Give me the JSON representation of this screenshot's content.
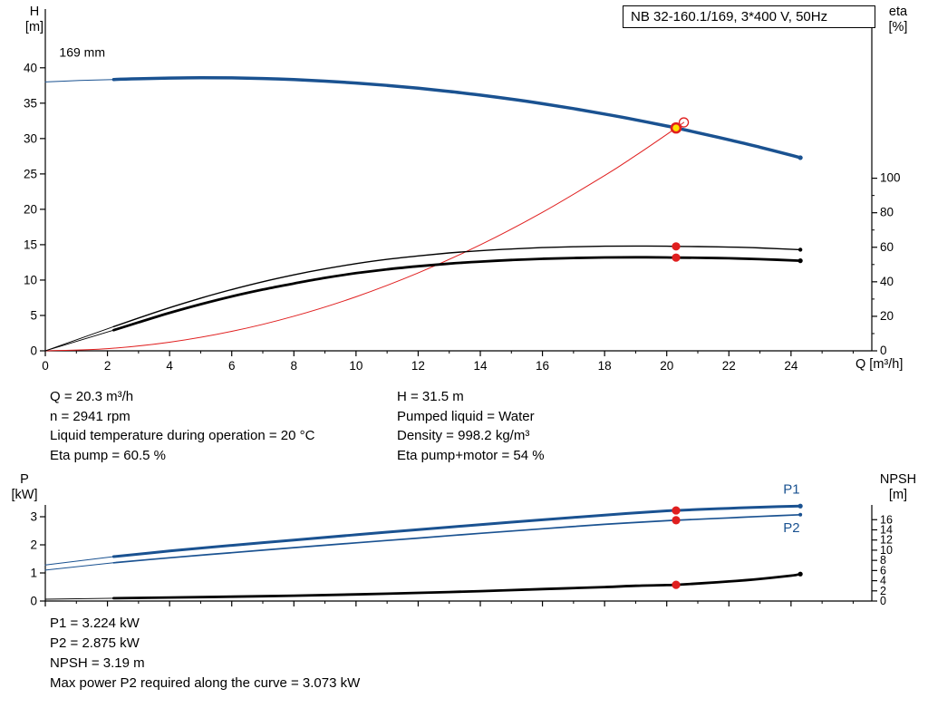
{
  "page": {
    "background": "#ffffff"
  },
  "colors": {
    "curve_blue": "#1a5291",
    "red": "#e01f1f",
    "yellow": "#ffe000",
    "black": "#000000"
  },
  "info": {
    "left": [
      "Q = 20.3 m³/h",
      "n = 2941 rpm",
      "Liquid temperature during operation = 20 °C",
      "Eta pump = 60.5 %"
    ],
    "right": [
      "H = 31.5 m",
      "Pumped liquid = Water",
      "Density = 998.2 kg/m³",
      "Eta pump+motor = 54 %"
    ]
  },
  "footer": [
    "P1 = 3.224 kW",
    "P2 = 2.875 kW",
    "NPSH = 3.19 m",
    "Max power P2 required along the curve = 3.073 kW"
  ],
  "chart_data": [
    {
      "name": "head-capacity-chart",
      "type": "line",
      "title": "NB 32-160.1/169, 3*400 V, 50Hz",
      "axes": {
        "x": {
          "label": "Q [m³/h]",
          "range": [
            0,
            26.6
          ],
          "ticks": [
            0,
            2,
            4,
            6,
            8,
            10,
            12,
            14,
            16,
            18,
            20,
            22,
            24
          ],
          "minor_step": 1,
          "show_labels": true
        },
        "y_left": {
          "label": "H [m]",
          "label_lines": [
            "H",
            "[m]"
          ],
          "range": [
            0,
            48.3
          ],
          "ticks": [
            0,
            5,
            10,
            15,
            20,
            25,
            30,
            35,
            40
          ]
        },
        "y_right": {
          "label": "eta [%]",
          "label_lines": [
            "eta",
            "[%]"
          ],
          "range": [
            0,
            198
          ],
          "ticks": [
            0,
            20,
            40,
            60,
            80,
            100
          ],
          "minor_step": 10
        }
      },
      "series": [
        {
          "name": "pump-curve-low-flow-extension",
          "axis": "left",
          "color": "#1a5291",
          "width": 1,
          "points": [
            [
              0,
              38.0
            ],
            [
              1.1,
              38.2
            ],
            [
              2.2,
              38.35
            ]
          ]
        },
        {
          "name": "pump-curve-169mm",
          "axis": "left",
          "color": "#1a5291",
          "width": 3.5,
          "points": [
            [
              2.2,
              38.35
            ],
            [
              3,
              38.45
            ],
            [
              4,
              38.55
            ],
            [
              5,
              38.6
            ],
            [
              6,
              38.57
            ],
            [
              7,
              38.48
            ],
            [
              8,
              38.33
            ],
            [
              9,
              38.11
            ],
            [
              10,
              37.84
            ],
            [
              11,
              37.51
            ],
            [
              12,
              37.11
            ],
            [
              13,
              36.66
            ],
            [
              14,
              36.14
            ],
            [
              15,
              35.57
            ],
            [
              16,
              34.93
            ],
            [
              17,
              34.23
            ],
            [
              18,
              33.47
            ],
            [
              19,
              32.65
            ],
            [
              20,
              31.77
            ],
            [
              20.3,
              31.5
            ],
            [
              21,
              30.83
            ],
            [
              22,
              29.83
            ],
            [
              23,
              28.77
            ],
            [
              24,
              27.65
            ],
            [
              24.3,
              27.3
            ]
          ]
        },
        {
          "name": "system-curve",
          "axis": "left",
          "color": "#e01f1f",
          "width": 1,
          "points": [
            [
              0,
              0
            ],
            [
              2,
              0.31
            ],
            [
              4,
              1.22
            ],
            [
              6,
              2.75
            ],
            [
              8,
              4.89
            ],
            [
              10,
              7.64
            ],
            [
              12,
              11.01
            ],
            [
              14,
              14.98
            ],
            [
              16,
              19.57
            ],
            [
              18,
              24.77
            ],
            [
              19,
              27.6
            ],
            [
              20,
              30.58
            ],
            [
              20.3,
              31.5
            ],
            [
              20.55,
              32.28
            ]
          ]
        },
        {
          "name": "eta-pump-extension",
          "axis": "right",
          "color": "#000000",
          "width": 0.9,
          "points": [
            [
              0,
              0
            ],
            [
              2.2,
              14
            ]
          ]
        },
        {
          "name": "eta-pump-curve",
          "axis": "right",
          "color": "#000000",
          "width": 1.4,
          "points": [
            [
              2.2,
              14
            ],
            [
              3,
              19
            ],
            [
              4,
              25
            ],
            [
              5,
              30.5
            ],
            [
              6,
              35.5
            ],
            [
              7,
              40
            ],
            [
              8,
              44
            ],
            [
              9,
              47.5
            ],
            [
              10,
              50.5
            ],
            [
              11,
              53
            ],
            [
              12,
              55
            ],
            [
              13,
              56.7
            ],
            [
              14,
              58
            ],
            [
              15,
              59
            ],
            [
              16,
              59.8
            ],
            [
              17,
              60.3
            ],
            [
              18,
              60.6
            ],
            [
              19,
              60.7
            ],
            [
              20,
              60.6
            ],
            [
              20.3,
              60.5
            ],
            [
              21,
              60.4
            ],
            [
              22,
              60.1
            ],
            [
              23,
              59.6
            ],
            [
              24.3,
              58.6
            ]
          ]
        },
        {
          "name": "eta-pump-motor-extension",
          "axis": "right",
          "color": "#000000",
          "width": 0.9,
          "points": [
            [
              0,
              0
            ],
            [
              2.2,
              12
            ]
          ]
        },
        {
          "name": "eta-pump-motor-curve",
          "axis": "right",
          "color": "#000000",
          "width": 2.8,
          "points": [
            [
              2.2,
              12
            ],
            [
              3,
              16.5
            ],
            [
              4,
              22
            ],
            [
              5,
              27
            ],
            [
              6,
              31.5
            ],
            [
              7,
              35.5
            ],
            [
              8,
              39
            ],
            [
              9,
              42.3
            ],
            [
              10,
              45
            ],
            [
              11,
              47.2
            ],
            [
              12,
              49
            ],
            [
              13,
              50.5
            ],
            [
              14,
              51.7
            ],
            [
              15,
              52.6
            ],
            [
              16,
              53.3
            ],
            [
              17,
              53.8
            ],
            [
              18,
              54.1
            ],
            [
              19,
              54.2
            ],
            [
              20,
              54.1
            ],
            [
              20.3,
              54.0
            ],
            [
              21,
              53.9
            ],
            [
              22,
              53.6
            ],
            [
              23,
              53.1
            ],
            [
              24.3,
              52.2
            ]
          ]
        }
      ],
      "markers": [
        {
          "name": "pump-curve-end-dot",
          "axis": "left",
          "x": 24.3,
          "y": 27.3,
          "r": 2.6,
          "fill": "#1a5291",
          "stroke": "none",
          "stroke_width": 0
        },
        {
          "name": "eta-pump-end-dot",
          "axis": "right",
          "x": 24.3,
          "y": 58.6,
          "r": 2.2,
          "fill": "#000000",
          "stroke": "none",
          "stroke_width": 0
        },
        {
          "name": "eta-pump-motor-end-dot",
          "axis": "right",
          "x": 24.3,
          "y": 52.2,
          "r": 2.6,
          "fill": "#000000",
          "stroke": "none",
          "stroke_width": 0
        },
        {
          "name": "requested-duty-point",
          "axis": "left",
          "x": 20.55,
          "y": 32.28,
          "r": 5,
          "fill": "none",
          "stroke": "#e01f1f",
          "stroke_width": 1.3
        },
        {
          "name": "duty-point",
          "axis": "left",
          "x": 20.3,
          "y": 31.5,
          "r": 5,
          "fill": "#ffe000",
          "stroke": "#e01f1f",
          "stroke_width": 2.6
        },
        {
          "name": "eta-pump-duty-dot",
          "axis": "right",
          "x": 20.3,
          "y": 60.5,
          "r": 4.6,
          "fill": "#e01f1f",
          "stroke": "none",
          "stroke_width": 0
        },
        {
          "name": "eta-pump-motor-duty-dot",
          "axis": "right",
          "x": 20.3,
          "y": 54,
          "r": 4.6,
          "fill": "#e01f1f",
          "stroke": "none",
          "stroke_width": 0
        }
      ],
      "annotations": [
        {
          "name": "impeller-size-label",
          "text": "169 mm",
          "x": 0.45,
          "y": 41.6,
          "color": "#000000",
          "size": 14
        }
      ]
    },
    {
      "name": "power-npsh-chart",
      "type": "line",
      "title": "",
      "axes": {
        "x": {
          "label": "",
          "range": [
            0,
            26.6
          ],
          "ticks": [
            0,
            2,
            4,
            6,
            8,
            10,
            12,
            14,
            16,
            18,
            20,
            22,
            24
          ],
          "minor_step": 1,
          "show_labels": false
        },
        "y_left": {
          "label": "P [kW]",
          "label_lines": [
            "P",
            "[kW]"
          ],
          "range": [
            0,
            3.42
          ],
          "ticks": [
            0,
            1,
            2,
            3
          ]
        },
        "y_right": {
          "label": "NPSH [m]",
          "label_lines": [
            "NPSH",
            "[m]"
          ],
          "range": [
            0,
            18.9
          ],
          "ticks": [
            0,
            2,
            4,
            6,
            8,
            10,
            12,
            14,
            16
          ],
          "font_size": 12.5
        }
      },
      "series": [
        {
          "name": "p1-low-flow-extension",
          "axis": "left",
          "color": "#1a5291",
          "width": 1,
          "points": [
            [
              0,
              1.28
            ],
            [
              2.2,
              1.58
            ]
          ]
        },
        {
          "name": "p1-curve",
          "axis": "left",
          "color": "#1a5291",
          "width": 3,
          "points": [
            [
              2.2,
              1.58
            ],
            [
              4,
              1.78
            ],
            [
              6,
              1.98
            ],
            [
              8,
              2.17
            ],
            [
              10,
              2.36
            ],
            [
              12,
              2.54
            ],
            [
              14,
              2.72
            ],
            [
              16,
              2.89
            ],
            [
              18,
              3.06
            ],
            [
              20,
              3.21
            ],
            [
              20.3,
              3.224
            ],
            [
              21,
              3.26
            ],
            [
              22,
              3.3
            ],
            [
              23,
              3.34
            ],
            [
              24.3,
              3.38
            ]
          ]
        },
        {
          "name": "p2-low-flow-extension",
          "axis": "left",
          "color": "#1a5291",
          "width": 1,
          "points": [
            [
              0,
              1.1
            ],
            [
              2.2,
              1.36
            ]
          ]
        },
        {
          "name": "p2-curve",
          "axis": "left",
          "color": "#1a5291",
          "width": 1.7,
          "points": [
            [
              2.2,
              1.36
            ],
            [
              4,
              1.54
            ],
            [
              6,
              1.72
            ],
            [
              8,
              1.9
            ],
            [
              10,
              2.07
            ],
            [
              12,
              2.24
            ],
            [
              14,
              2.41
            ],
            [
              16,
              2.57
            ],
            [
              18,
              2.73
            ],
            [
              20,
              2.86
            ],
            [
              20.3,
              2.875
            ],
            [
              21,
              2.91
            ],
            [
              22,
              2.96
            ],
            [
              23,
              3.01
            ],
            [
              24.3,
              3.073
            ]
          ]
        },
        {
          "name": "npsh-low-flow-extension",
          "axis": "right",
          "color": "#000000",
          "width": 0.9,
          "points": [
            [
              0,
              0.35
            ],
            [
              2.2,
              0.55
            ]
          ]
        },
        {
          "name": "npsh-curve",
          "axis": "right",
          "color": "#000000",
          "width": 2.8,
          "points": [
            [
              2.2,
              0.55
            ],
            [
              4,
              0.7
            ],
            [
              6,
              0.85
            ],
            [
              8,
              1.05
            ],
            [
              10,
              1.3
            ],
            [
              12,
              1.6
            ],
            [
              14,
              1.95
            ],
            [
              16,
              2.35
            ],
            [
              18,
              2.75
            ],
            [
              19,
              3.0
            ],
            [
              20,
              3.13
            ],
            [
              20.3,
              3.19
            ],
            [
              21,
              3.45
            ],
            [
              22,
              3.85
            ],
            [
              23,
              4.35
            ],
            [
              24,
              5.0
            ],
            [
              24.3,
              5.3
            ]
          ]
        }
      ],
      "markers": [
        {
          "name": "p1-duty-dot",
          "axis": "left",
          "x": 20.3,
          "y": 3.224,
          "r": 4.6,
          "fill": "#e01f1f",
          "stroke": "none",
          "stroke_width": 0
        },
        {
          "name": "p2-duty-dot",
          "axis": "left",
          "x": 20.3,
          "y": 2.875,
          "r": 4.6,
          "fill": "#e01f1f",
          "stroke": "none",
          "stroke_width": 0
        },
        {
          "name": "npsh-duty-dot",
          "axis": "right",
          "x": 20.3,
          "y": 3.19,
          "r": 4.6,
          "fill": "#e01f1f",
          "stroke": "none",
          "stroke_width": 0
        },
        {
          "name": "p1-end-dot",
          "axis": "left",
          "x": 24.3,
          "y": 3.38,
          "r": 2.6,
          "fill": "#1a5291",
          "stroke": "none",
          "stroke_width": 0
        },
        {
          "name": "p2-end-dot",
          "axis": "left",
          "x": 24.3,
          "y": 3.073,
          "r": 2,
          "fill": "#1a5291",
          "stroke": "none",
          "stroke_width": 0
        },
        {
          "name": "npsh-end-dot",
          "axis": "right",
          "x": 24.3,
          "y": 5.3,
          "r": 2.6,
          "fill": "#000000",
          "stroke": "none",
          "stroke_width": 0
        }
      ],
      "annotations": [
        {
          "name": "p1-label",
          "text": "P1",
          "x": 23.75,
          "y": 3.82,
          "color": "#1a5291",
          "size": 15
        },
        {
          "name": "p2-label",
          "text": "P2",
          "x": 23.75,
          "y": 2.45,
          "color": "#1a5291",
          "size": 15
        }
      ]
    }
  ]
}
